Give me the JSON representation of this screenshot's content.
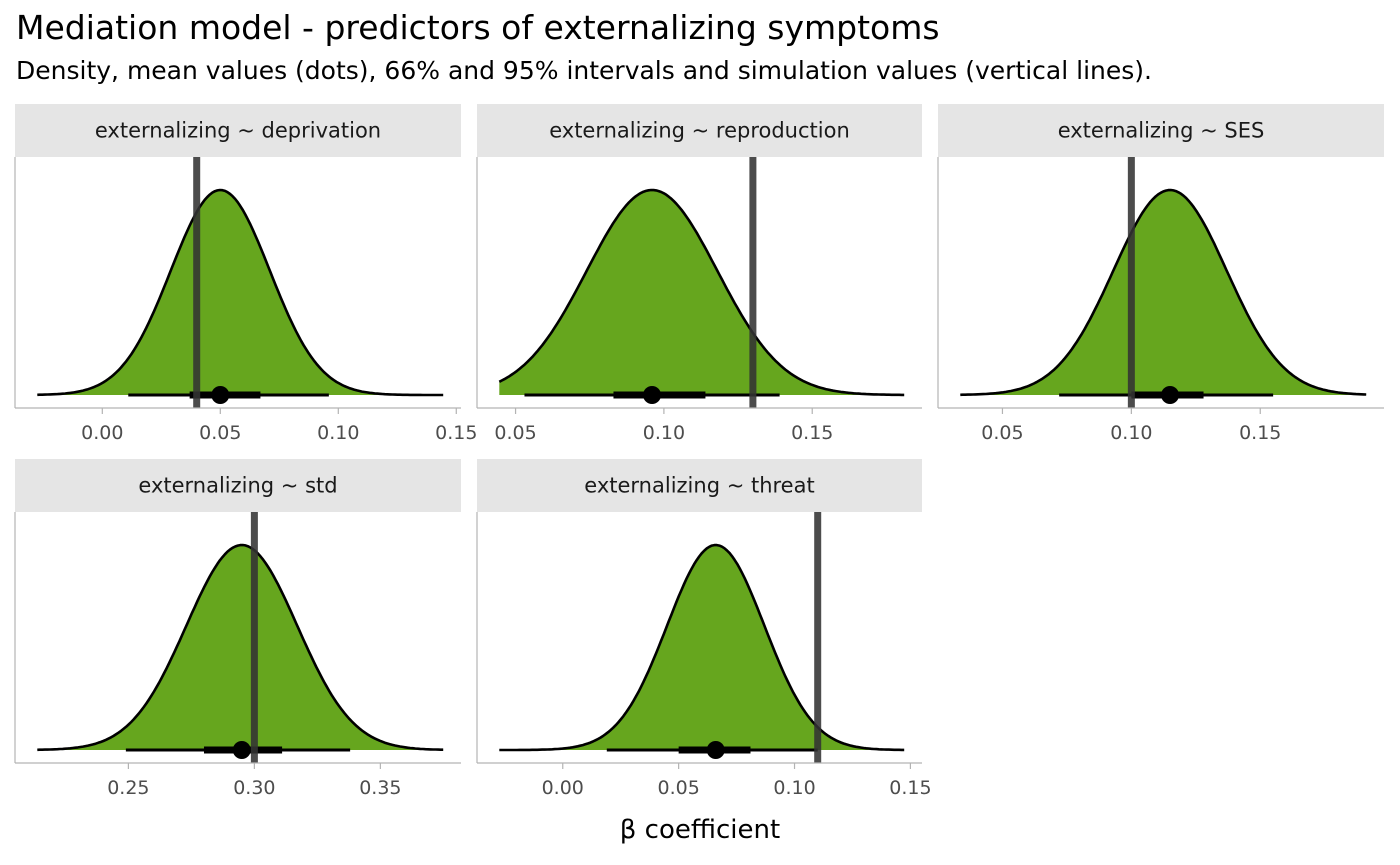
{
  "chart_data": {
    "type": "density",
    "title": "Mediation model - predictors of externalizing symptoms",
    "subtitle": "Density, mean values (dots), 66% and 95% intervals and simulation values (vertical lines).",
    "xlabel": "β coefficient",
    "colors": {
      "fill": "#66a61e",
      "outline": "#000000",
      "sim_line": "#333333",
      "strip": "#e5e5e5"
    },
    "panels": [
      {
        "label": "externalizing ~ deprivation",
        "xlim": [
          -0.037,
          0.152
        ],
        "ticks": [
          0.0,
          0.05,
          0.1,
          0.15
        ],
        "tick_labels": [
          "0.00",
          "0.05",
          "0.10",
          "0.15"
        ],
        "mean": 0.05,
        "sd": 0.021,
        "interval_66": [
          0.037,
          0.067
        ],
        "interval_95": [
          0.011,
          0.096
        ],
        "simulation_value": 0.04
      },
      {
        "label": "externalizing ~ reproduction",
        "xlim": [
          0.037,
          0.187
        ],
        "ticks": [
          0.05,
          0.1,
          0.15
        ],
        "tick_labels": [
          "0.05",
          "0.10",
          "0.15"
        ],
        "mean": 0.096,
        "sd": 0.022,
        "interval_66": [
          0.083,
          0.114
        ],
        "interval_95": [
          0.053,
          0.139
        ],
        "simulation_value": 0.13
      },
      {
        "label": "externalizing ~ SES",
        "xlim": [
          0.025,
          0.198
        ],
        "ticks": [
          0.05,
          0.1,
          0.15
        ],
        "tick_labels": [
          "0.05",
          "0.10",
          "0.15"
        ],
        "mean": 0.115,
        "sd": 0.022,
        "interval_66": [
          0.1,
          0.128
        ],
        "interval_95": [
          0.072,
          0.155
        ],
        "simulation_value": 0.1
      },
      {
        "label": "externalizing ~ std",
        "xlim": [
          0.205,
          0.382
        ],
        "ticks": [
          0.25,
          0.3,
          0.35
        ],
        "tick_labels": [
          "0.25",
          "0.30",
          "0.35"
        ],
        "mean": 0.295,
        "sd": 0.022,
        "interval_66": [
          0.28,
          0.311
        ],
        "interval_95": [
          0.249,
          0.338
        ],
        "simulation_value": 0.3
      },
      {
        "label": "externalizing ~ threat",
        "xlim": [
          -0.037,
          0.155
        ],
        "ticks": [
          0.0,
          0.05,
          0.1,
          0.15
        ],
        "tick_labels": [
          "0.00",
          "0.05",
          "0.10",
          "0.15"
        ],
        "mean": 0.066,
        "sd": 0.021,
        "interval_66": [
          0.05,
          0.081
        ],
        "interval_95": [
          0.019,
          0.11
        ],
        "simulation_value": 0.11
      }
    ]
  }
}
